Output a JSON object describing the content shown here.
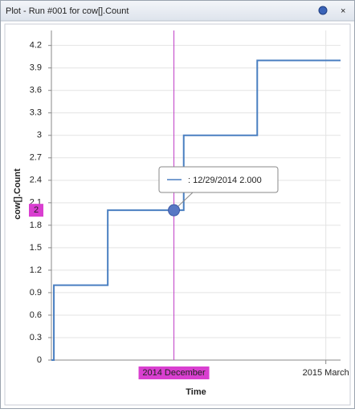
{
  "chart_data": {
    "type": "step-line",
    "title": "Plot - Run #001 for cow[].Count",
    "x_label": "Time",
    "y_label": "cow[].Count",
    "x": [
      "2014-11-09",
      "2014-11-10",
      "2014-12-02",
      "2015-01-02",
      "2015-02-01",
      "2015-03-07"
    ],
    "series": [
      {
        "name": "cow[].Count",
        "color": "#4a7fc1",
        "values": [
          0,
          1,
          2,
          3,
          4,
          4
        ]
      }
    ],
    "xlim": [
      "2014-11-09",
      "2015-03-07"
    ],
    "xticks": [
      {
        "value": "2015-03-01",
        "label": "2015 March"
      }
    ],
    "ylim": [
      0,
      4.4
    ],
    "yticks": [
      0,
      0.3,
      0.6,
      0.9,
      1.2,
      1.5,
      1.8,
      2.1,
      2.4,
      2.7,
      3,
      3.3,
      3.6,
      3.9,
      4.2
    ],
    "grid": true,
    "crosshair": {
      "x": "2014-12-29",
      "value": 2,
      "x_label": "2014 December",
      "value_label": "2",
      "tooltip": ": 12/29/2014 2.000",
      "color": "#c03fc6"
    }
  }
}
